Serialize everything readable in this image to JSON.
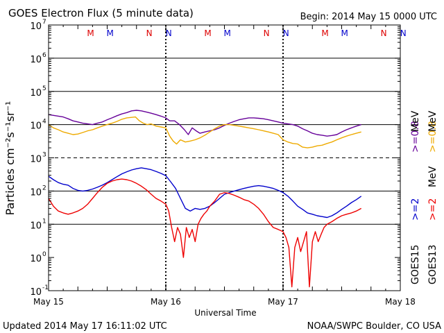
{
  "chart_data": {
    "type": "line",
    "title": "GOES Electron Flux (5 minute data)",
    "begin_label": "Begin: 2014 May 15 0000 UTC",
    "xlabel": "Universal Time",
    "ylabel": "Particles cm⁻²s⁻¹sr⁻¹",
    "y_scale": "log",
    "ylim": [
      0.1,
      10000000
    ],
    "y_ticks": [
      {
        "value": 0.1,
        "base": "10",
        "exp": "-1"
      },
      {
        "value": 1,
        "base": "10",
        "exp": "0"
      },
      {
        "value": 10,
        "base": "10",
        "exp": "1"
      },
      {
        "value": 100,
        "base": "10",
        "exp": "2"
      },
      {
        "value": 1000,
        "base": "10",
        "exp": "3"
      },
      {
        "value": 10000,
        "base": "10",
        "exp": "4"
      },
      {
        "value": 100000,
        "base": "10",
        "exp": "5"
      },
      {
        "value": 1000000,
        "base": "10",
        "exp": "6"
      },
      {
        "value": 10000000,
        "base": "10",
        "exp": "7"
      }
    ],
    "x_unit": "hours since 2014 May 15 0000 UTC",
    "xlim": [
      0,
      72
    ],
    "x_ticks": [
      {
        "value": 0,
        "label": "May 15"
      },
      {
        "value": 24,
        "label": "May 16"
      },
      {
        "value": 48,
        "label": "May 17"
      },
      {
        "value": 72,
        "label": "May 18"
      }
    ],
    "gridlines": [
      10,
      100,
      10000,
      100000,
      1000000
    ],
    "threshold_line": 1000,
    "markers": [
      {
        "x": 8.6,
        "label": "M",
        "color": "#dd0000"
      },
      {
        "x": 12.6,
        "label": "M",
        "color": "#0000cc"
      },
      {
        "x": 20.6,
        "label": "N",
        "color": "#dd0000"
      },
      {
        "x": 24.6,
        "label": "N",
        "color": "#0000cc"
      },
      {
        "x": 32.6,
        "label": "M",
        "color": "#dd0000"
      },
      {
        "x": 36.6,
        "label": "M",
        "color": "#0000cc"
      },
      {
        "x": 44.6,
        "label": "N",
        "color": "#dd0000"
      },
      {
        "x": 48.6,
        "label": "N",
        "color": "#0000cc"
      },
      {
        "x": 56.6,
        "label": "M",
        "color": "#dd0000"
      },
      {
        "x": 60.6,
        "label": "M",
        "color": "#0000cc"
      },
      {
        "x": 68.6,
        "label": "N",
        "color": "#dd0000"
      },
      {
        "x": 72.6,
        "label": "N",
        "color": "#0000cc"
      }
    ],
    "series": [
      {
        "name": "GOES15 >=0.8 MeV",
        "color": "#660099",
        "points": [
          [
            0,
            20000
          ],
          [
            1,
            19000
          ],
          [
            2,
            18000
          ],
          [
            3,
            17000
          ],
          [
            4,
            15000
          ],
          [
            5,
            13000
          ],
          [
            6,
            12000
          ],
          [
            7,
            11000
          ],
          [
            8,
            10500
          ],
          [
            9,
            10000
          ],
          [
            10,
            11000
          ],
          [
            11,
            12000
          ],
          [
            12,
            14000
          ],
          [
            13,
            16000
          ],
          [
            14,
            18500
          ],
          [
            15,
            21000
          ],
          [
            16,
            23000
          ],
          [
            17,
            26000
          ],
          [
            18,
            27000
          ],
          [
            19,
            26000
          ],
          [
            20,
            24000
          ],
          [
            21,
            22000
          ],
          [
            22,
            20000
          ],
          [
            23,
            18000
          ],
          [
            24,
            16000
          ],
          [
            24.8,
            13000
          ],
          [
            25.8,
            13000
          ],
          [
            26.8,
            10000
          ],
          [
            27.8,
            7000
          ],
          [
            28.6,
            5000
          ],
          [
            29.4,
            8000
          ],
          [
            30.2,
            6500
          ],
          [
            31,
            5500
          ],
          [
            32,
            6000
          ],
          [
            33,
            6500
          ],
          [
            34,
            7000
          ],
          [
            35,
            8000
          ],
          [
            36,
            9500
          ],
          [
            37,
            11000
          ],
          [
            38,
            12500
          ],
          [
            39,
            14000
          ],
          [
            40,
            15000
          ],
          [
            41,
            16000
          ],
          [
            42,
            16000
          ],
          [
            43,
            15500
          ],
          [
            44,
            15000
          ],
          [
            45,
            14000
          ],
          [
            46,
            13000
          ],
          [
            47,
            12000
          ],
          [
            48,
            11000
          ],
          [
            49,
            10500
          ],
          [
            50,
            10000
          ],
          [
            51,
            9000
          ],
          [
            52,
            7500
          ],
          [
            53,
            6500
          ],
          [
            54,
            5500
          ],
          [
            55,
            5000
          ],
          [
            56,
            4800
          ],
          [
            57,
            4500
          ],
          [
            58,
            4700
          ],
          [
            59,
            5000
          ],
          [
            60,
            6000
          ],
          [
            61,
            7000
          ],
          [
            62,
            8000
          ],
          [
            63,
            9000
          ],
          [
            64,
            10000
          ]
        ]
      },
      {
        "name": "GOES13 >=0.8 MeV",
        "color": "#eeaa00",
        "points": [
          [
            0,
            10000
          ],
          [
            1,
            8000
          ],
          [
            2,
            7000
          ],
          [
            3,
            6000
          ],
          [
            4,
            5500
          ],
          [
            5,
            5000
          ],
          [
            6,
            5200
          ],
          [
            7,
            5800
          ],
          [
            8,
            6500
          ],
          [
            9,
            7000
          ],
          [
            10,
            8000
          ],
          [
            11,
            9000
          ],
          [
            12,
            10000
          ],
          [
            13,
            11000
          ],
          [
            14,
            12500
          ],
          [
            15,
            14500
          ],
          [
            16,
            16000
          ],
          [
            17,
            16500
          ],
          [
            17.8,
            17000
          ],
          [
            18.6,
            13000
          ],
          [
            19.4,
            11000
          ],
          [
            20.2,
            10000
          ],
          [
            21,
            10500
          ],
          [
            22,
            9000
          ],
          [
            23,
            8500
          ],
          [
            24,
            8000
          ],
          [
            24.8,
            4500
          ],
          [
            25.5,
            3200
          ],
          [
            26.2,
            2600
          ],
          [
            27,
            3500
          ],
          [
            28,
            3000
          ],
          [
            29,
            3200
          ],
          [
            30,
            3500
          ],
          [
            31,
            4000
          ],
          [
            32,
            4800
          ],
          [
            33,
            6000
          ],
          [
            34,
            7500
          ],
          [
            35,
            9000
          ],
          [
            36,
            10000
          ],
          [
            37,
            10000
          ],
          [
            38,
            9500
          ],
          [
            39,
            9000
          ],
          [
            40,
            8500
          ],
          [
            41,
            8000
          ],
          [
            42,
            7500
          ],
          [
            43,
            7000
          ],
          [
            44,
            6500
          ],
          [
            45,
            6000
          ],
          [
            46,
            5500
          ],
          [
            47,
            5000
          ],
          [
            48,
            3500
          ],
          [
            49,
            3000
          ],
          [
            50,
            2700
          ],
          [
            51,
            2600
          ],
          [
            52,
            2100
          ],
          [
            53,
            2000
          ],
          [
            54,
            2100
          ],
          [
            55,
            2300
          ],
          [
            56,
            2400
          ],
          [
            57,
            2700
          ],
          [
            58,
            3000
          ],
          [
            59,
            3500
          ],
          [
            60,
            4000
          ],
          [
            61,
            4500
          ],
          [
            62,
            5000
          ],
          [
            63,
            5500
          ],
          [
            64,
            6000
          ]
        ]
      },
      {
        "name": "GOES15 >=2 MeV",
        "color": "#0000cc",
        "points": [
          [
            0,
            280
          ],
          [
            1,
            220
          ],
          [
            2,
            180
          ],
          [
            3,
            160
          ],
          [
            4,
            150
          ],
          [
            5,
            120
          ],
          [
            6,
            105
          ],
          [
            7,
            100
          ],
          [
            8,
            105
          ],
          [
            9,
            115
          ],
          [
            10,
            130
          ],
          [
            11,
            150
          ],
          [
            12,
            180
          ],
          [
            13,
            220
          ],
          [
            14,
            270
          ],
          [
            15,
            330
          ],
          [
            16,
            380
          ],
          [
            17,
            430
          ],
          [
            18,
            470
          ],
          [
            19,
            500
          ],
          [
            20,
            470
          ],
          [
            21,
            440
          ],
          [
            22,
            390
          ],
          [
            23,
            340
          ],
          [
            24,
            290
          ],
          [
            25,
            190
          ],
          [
            26,
            120
          ],
          [
            27,
            60
          ],
          [
            28,
            30
          ],
          [
            29,
            25
          ],
          [
            30,
            30
          ],
          [
            31,
            28
          ],
          [
            32,
            30
          ],
          [
            33,
            35
          ],
          [
            34,
            45
          ],
          [
            35,
            60
          ],
          [
            36,
            80
          ],
          [
            37,
            90
          ],
          [
            38,
            100
          ],
          [
            39,
            110
          ],
          [
            40,
            120
          ],
          [
            41,
            130
          ],
          [
            42,
            140
          ],
          [
            43,
            145
          ],
          [
            44,
            140
          ],
          [
            45,
            130
          ],
          [
            46,
            120
          ],
          [
            47,
            105
          ],
          [
            48,
            90
          ],
          [
            49,
            70
          ],
          [
            50,
            50
          ],
          [
            51,
            35
          ],
          [
            52,
            28
          ],
          [
            53,
            22
          ],
          [
            54,
            20
          ],
          [
            55,
            18
          ],
          [
            56,
            17
          ],
          [
            57,
            16
          ],
          [
            58,
            18
          ],
          [
            59,
            22
          ],
          [
            60,
            28
          ],
          [
            61,
            35
          ],
          [
            62,
            45
          ],
          [
            63,
            55
          ],
          [
            64,
            70
          ]
        ]
      },
      {
        "name": "GOES13 >=2 MeV",
        "color": "#ee0000",
        "points": [
          [
            0,
            60
          ],
          [
            1,
            35
          ],
          [
            2,
            25
          ],
          [
            3,
            22
          ],
          [
            4,
            20
          ],
          [
            5,
            22
          ],
          [
            6,
            25
          ],
          [
            7,
            30
          ],
          [
            8,
            40
          ],
          [
            9,
            60
          ],
          [
            10,
            90
          ],
          [
            11,
            130
          ],
          [
            12,
            170
          ],
          [
            13,
            200
          ],
          [
            14,
            220
          ],
          [
            15,
            230
          ],
          [
            16,
            220
          ],
          [
            17,
            200
          ],
          [
            18,
            170
          ],
          [
            19,
            140
          ],
          [
            20,
            110
          ],
          [
            21,
            80
          ],
          [
            22,
            60
          ],
          [
            23,
            50
          ],
          [
            24,
            40
          ],
          [
            24.6,
            25
          ],
          [
            25.2,
            8
          ],
          [
            25.8,
            3
          ],
          [
            26.4,
            8
          ],
          [
            27,
            5
          ],
          [
            27.6,
            1
          ],
          [
            28.2,
            8
          ],
          [
            28.8,
            4
          ],
          [
            29.4,
            7
          ],
          [
            30,
            3
          ],
          [
            30.6,
            10
          ],
          [
            31.2,
            15
          ],
          [
            31.8,
            20
          ],
          [
            32.4,
            25
          ],
          [
            33,
            35
          ],
          [
            34,
            50
          ],
          [
            35,
            80
          ],
          [
            36,
            90
          ],
          [
            37,
            85
          ],
          [
            38,
            75
          ],
          [
            39,
            65
          ],
          [
            40,
            55
          ],
          [
            41,
            50
          ],
          [
            42,
            40
          ],
          [
            43,
            30
          ],
          [
            44,
            20
          ],
          [
            45,
            12
          ],
          [
            46,
            8
          ],
          [
            47,
            7
          ],
          [
            48,
            6
          ],
          [
            48.6,
            4
          ],
          [
            49.2,
            2
          ],
          [
            49.8,
            0.13
          ],
          [
            50.4,
            2
          ],
          [
            51,
            4
          ],
          [
            51.6,
            1.5
          ],
          [
            52.2,
            3
          ],
          [
            52.8,
            6
          ],
          [
            53.4,
            0.13
          ],
          [
            54,
            3
          ],
          [
            54.6,
            6
          ],
          [
            55.2,
            3
          ],
          [
            55.8,
            5
          ],
          [
            56.4,
            8
          ],
          [
            57,
            10
          ],
          [
            58,
            12
          ],
          [
            59,
            15
          ],
          [
            60,
            18
          ],
          [
            61,
            20
          ],
          [
            62,
            22
          ],
          [
            63,
            25
          ],
          [
            64,
            30
          ]
        ]
      }
    ],
    "legend": {
      "placement": "right",
      "satellites": [
        {
          "label": "GOES15"
        },
        {
          "label": "GOES13"
        }
      ],
      "entries": [
        {
          "group": "GOES15 >=0.8 MeV",
          "text": ">=0.8",
          "unit": "MeV",
          "color": "#660099"
        },
        {
          "group": "GOES13 >=0.8 MeV",
          "text": ">=0.8",
          "unit": "MeV",
          "color": "#eeaa00"
        },
        {
          "group": "GOES15 >=2 MeV",
          "text": ">=2",
          "unit": "",
          "color": "#0000cc"
        },
        {
          "group": "GOES13 >=2 MeV",
          "text": ">=2",
          "unit": "MeV",
          "color": "#ee0000"
        }
      ]
    }
  },
  "footer": {
    "updated": "Updated 2014 May 17 16:11:02 UTC",
    "credit": "NOAA/SWPC Boulder, CO USA"
  }
}
